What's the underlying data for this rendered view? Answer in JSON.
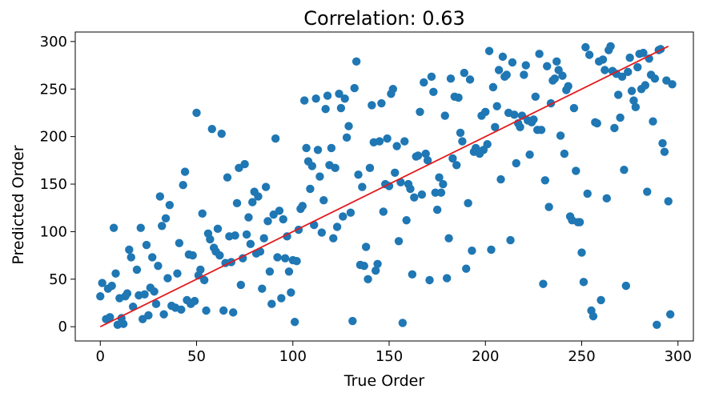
{
  "chart_data": {
    "type": "scatter",
    "title": "Correlation: 0.63",
    "xlabel": "True Order",
    "ylabel": "Predicted Order",
    "xlim": [
      -13,
      308
    ],
    "ylim": [
      -15,
      310
    ],
    "xticks": [
      0,
      50,
      100,
      150,
      200,
      250,
      300
    ],
    "yticks": [
      0,
      50,
      100,
      150,
      200,
      250,
      300
    ],
    "grid": false,
    "legend": "none",
    "point_color": "#1f77b4",
    "line_color": "#e41a1c",
    "reference_line": {
      "x": [
        0,
        295
      ],
      "y": [
        0,
        295
      ]
    },
    "points": [
      [
        0,
        32
      ],
      [
        1,
        46
      ],
      [
        3,
        8
      ],
      [
        4,
        40
      ],
      [
        5,
        10
      ],
      [
        6,
        43
      ],
      [
        7,
        104
      ],
      [
        8,
        56
      ],
      [
        9,
        2
      ],
      [
        10,
        30
      ],
      [
        11,
        9
      ],
      [
        12,
        3
      ],
      [
        13,
        32
      ],
      [
        14,
        35
      ],
      [
        15,
        81
      ],
      [
        16,
        73
      ],
      [
        17,
        21
      ],
      [
        19,
        60
      ],
      [
        20,
        33
      ],
      [
        21,
        104
      ],
      [
        22,
        8
      ],
      [
        23,
        34
      ],
      [
        24,
        86
      ],
      [
        25,
        12
      ],
      [
        26,
        41
      ],
      [
        27,
        73
      ],
      [
        28,
        37
      ],
      [
        29,
        24
      ],
      [
        30,
        64
      ],
      [
        31,
        137
      ],
      [
        32,
        106
      ],
      [
        33,
        13
      ],
      [
        34,
        114
      ],
      [
        35,
        51
      ],
      [
        36,
        128
      ],
      [
        37,
        22
      ],
      [
        39,
        20
      ],
      [
        40,
        56
      ],
      [
        41,
        88
      ],
      [
        42,
        18
      ],
      [
        43,
        149
      ],
      [
        44,
        163
      ],
      [
        45,
        28
      ],
      [
        46,
        76
      ],
      [
        47,
        24
      ],
      [
        48,
        75
      ],
      [
        49,
        27
      ],
      [
        50,
        225
      ],
      [
        51,
        54
      ],
      [
        52,
        60
      ],
      [
        53,
        119
      ],
      [
        54,
        49
      ],
      [
        55,
        17
      ],
      [
        56,
        98
      ],
      [
        57,
        92
      ],
      [
        58,
        208
      ],
      [
        59,
        83
      ],
      [
        60,
        79
      ],
      [
        61,
        103
      ],
      [
        62,
        75
      ],
      [
        63,
        203
      ],
      [
        64,
        17
      ],
      [
        65,
        67
      ],
      [
        66,
        157
      ],
      [
        67,
        95
      ],
      [
        68,
        68
      ],
      [
        69,
        15
      ],
      [
        70,
        96
      ],
      [
        71,
        130
      ],
      [
        72,
        167
      ],
      [
        73,
        44
      ],
      [
        74,
        72
      ],
      [
        75,
        171
      ],
      [
        76,
        97
      ],
      [
        77,
        115
      ],
      [
        78,
        87
      ],
      [
        79,
        131
      ],
      [
        80,
        142
      ],
      [
        81,
        77
      ],
      [
        82,
        137
      ],
      [
        83,
        79
      ],
      [
        84,
        40
      ],
      [
        85,
        93
      ],
      [
        86,
        147
      ],
      [
        87,
        111
      ],
      [
        88,
        58
      ],
      [
        89,
        24
      ],
      [
        90,
        118
      ],
      [
        91,
        198
      ],
      [
        92,
        73
      ],
      [
        93,
        122
      ],
      [
        94,
        30
      ],
      [
        95,
        113
      ],
      [
        96,
        72
      ],
      [
        97,
        95
      ],
      [
        98,
        58
      ],
      [
        99,
        36
      ],
      [
        100,
        70
      ],
      [
        101,
        5
      ],
      [
        102,
        69
      ],
      [
        103,
        102
      ],
      [
        104,
        124
      ],
      [
        105,
        127
      ],
      [
        106,
        238
      ],
      [
        107,
        188
      ],
      [
        108,
        174
      ],
      [
        109,
        145
      ],
      [
        110,
        169
      ],
      [
        111,
        107
      ],
      [
        112,
        240
      ],
      [
        113,
        186
      ],
      [
        114,
        158
      ],
      [
        115,
        99
      ],
      [
        116,
        133
      ],
      [
        117,
        229
      ],
      [
        118,
        243
      ],
      [
        119,
        170
      ],
      [
        120,
        188
      ],
      [
        121,
        93
      ],
      [
        122,
        167
      ],
      [
        123,
        105
      ],
      [
        124,
        245
      ],
      [
        125,
        230
      ],
      [
        126,
        116
      ],
      [
        127,
        240
      ],
      [
        128,
        199
      ],
      [
        129,
        211
      ],
      [
        130,
        120
      ],
      [
        131,
        6
      ],
      [
        132,
        251
      ],
      [
        133,
        279
      ],
      [
        134,
        160
      ],
      [
        135,
        65
      ],
      [
        136,
        147
      ],
      [
        137,
        64
      ],
      [
        138,
        84
      ],
      [
        139,
        50
      ],
      [
        140,
        167
      ],
      [
        141,
        233
      ],
      [
        142,
        194
      ],
      [
        143,
        59
      ],
      [
        144,
        66
      ],
      [
        145,
        195
      ],
      [
        146,
        235
      ],
      [
        147,
        121
      ],
      [
        148,
        150
      ],
      [
        149,
        198
      ],
      [
        150,
        148
      ],
      [
        151,
        245
      ],
      [
        152,
        250
      ],
      [
        153,
        162
      ],
      [
        154,
        190
      ],
      [
        155,
        90
      ],
      [
        156,
        152
      ],
      [
        157,
        4
      ],
      [
        158,
        195
      ],
      [
        159,
        112
      ],
      [
        160,
        150
      ],
      [
        161,
        145
      ],
      [
        162,
        55
      ],
      [
        163,
        136
      ],
      [
        164,
        179
      ],
      [
        165,
        180
      ],
      [
        166,
        226
      ],
      [
        167,
        139
      ],
      [
        168,
        257
      ],
      [
        169,
        182
      ],
      [
        170,
        175
      ],
      [
        171,
        49
      ],
      [
        172,
        263
      ],
      [
        173,
        247
      ],
      [
        174,
        141
      ],
      [
        175,
        123
      ],
      [
        176,
        157
      ],
      [
        177,
        141
      ],
      [
        178,
        150
      ],
      [
        179,
        222
      ],
      [
        180,
        51
      ],
      [
        181,
        93
      ],
      [
        182,
        261
      ],
      [
        183,
        177
      ],
      [
        184,
        242
      ],
      [
        185,
        170
      ],
      [
        186,
        241
      ],
      [
        187,
        204
      ],
      [
        188,
        195
      ],
      [
        189,
        267
      ],
      [
        190,
        61
      ],
      [
        191,
        130
      ],
      [
        192,
        260
      ],
      [
        193,
        80
      ],
      [
        194,
        184
      ],
      [
        195,
        188
      ],
      [
        196,
        184
      ],
      [
        197,
        182
      ],
      [
        198,
        222
      ],
      [
        199,
        186
      ],
      [
        200,
        226
      ],
      [
        201,
        192
      ],
      [
        202,
        290
      ],
      [
        203,
        81
      ],
      [
        204,
        252
      ],
      [
        205,
        210
      ],
      [
        206,
        232
      ],
      [
        207,
        270
      ],
      [
        208,
        155
      ],
      [
        209,
        284
      ],
      [
        210,
        263
      ],
      [
        211,
        265
      ],
      [
        212,
        225
      ],
      [
        213,
        91
      ],
      [
        214,
        278
      ],
      [
        215,
        223
      ],
      [
        216,
        172
      ],
      [
        217,
        214
      ],
      [
        218,
        210
      ],
      [
        219,
        222
      ],
      [
        220,
        265
      ],
      [
        221,
        275
      ],
      [
        222,
        217
      ],
      [
        223,
        181
      ],
      [
        224,
        215
      ],
      [
        225,
        218
      ],
      [
        226,
        242
      ],
      [
        227,
        207
      ],
      [
        228,
        287
      ],
      [
        229,
        207
      ],
      [
        230,
        45
      ],
      [
        231,
        154
      ],
      [
        232,
        274
      ],
      [
        233,
        126
      ],
      [
        234,
        235
      ],
      [
        235,
        259
      ],
      [
        236,
        261
      ],
      [
        237,
        279
      ],
      [
        238,
        270
      ],
      [
        239,
        201
      ],
      [
        240,
        264
      ],
      [
        241,
        182
      ],
      [
        242,
        249
      ],
      [
        243,
        253
      ],
      [
        244,
        116
      ],
      [
        245,
        112
      ],
      [
        246,
        230
      ],
      [
        247,
        164
      ],
      [
        248,
        110
      ],
      [
        249,
        110
      ],
      [
        250,
        78
      ],
      [
        251,
        47
      ],
      [
        252,
        294
      ],
      [
        253,
        140
      ],
      [
        254,
        286
      ],
      [
        255,
        17
      ],
      [
        256,
        11
      ],
      [
        257,
        215
      ],
      [
        258,
        214
      ],
      [
        259,
        279
      ],
      [
        260,
        28
      ],
      [
        261,
        281
      ],
      [
        262,
        270
      ],
      [
        263,
        135
      ],
      [
        264,
        291
      ],
      [
        265,
        295
      ],
      [
        266,
        269
      ],
      [
        267,
        209
      ],
      [
        268,
        266
      ],
      [
        269,
        244
      ],
      [
        270,
        220
      ],
      [
        271,
        263
      ],
      [
        272,
        165
      ],
      [
        273,
        43
      ],
      [
        274,
        268
      ],
      [
        275,
        283
      ],
      [
        276,
        248
      ],
      [
        277,
        238
      ],
      [
        278,
        231
      ],
      [
        279,
        273
      ],
      [
        280,
        287
      ],
      [
        281,
        250
      ],
      [
        282,
        288
      ],
      [
        283,
        254
      ],
      [
        284,
        142
      ],
      [
        285,
        282
      ],
      [
        286,
        265
      ],
      [
        287,
        216
      ],
      [
        288,
        261
      ],
      [
        289,
        2
      ],
      [
        290,
        291
      ],
      [
        291,
        292
      ],
      [
        292,
        193
      ],
      [
        293,
        184
      ],
      [
        294,
        259
      ],
      [
        295,
        132
      ],
      [
        296,
        13
      ],
      [
        297,
        255
      ]
    ]
  }
}
